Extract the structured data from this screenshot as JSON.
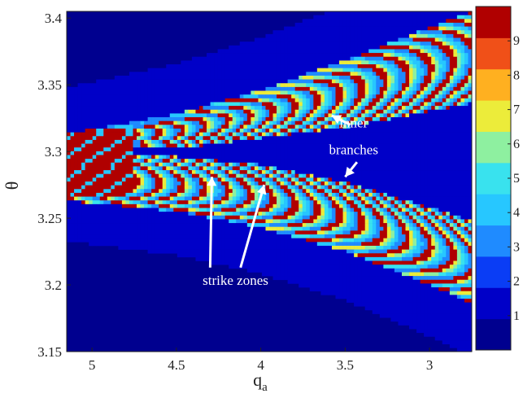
{
  "chart_data": {
    "type": "heatmap",
    "title": "",
    "xlabel": "q",
    "xlabel_sub": "a",
    "ylabel": "θ",
    "x_reversed": true,
    "xlim": [
      5.15,
      2.75
    ],
    "ylim": [
      3.15,
      3.405
    ],
    "x_ticks": [
      {
        "value": 5,
        "label": "5"
      },
      {
        "value": 4.5,
        "label": "4.5"
      },
      {
        "value": 4,
        "label": "4"
      },
      {
        "value": 3.5,
        "label": "3.5"
      },
      {
        "value": 3,
        "label": "3"
      }
    ],
    "y_ticks": [
      {
        "value": 3.4,
        "label": "3.4"
      },
      {
        "value": 3.35,
        "label": "3.35"
      },
      {
        "value": 3.3,
        "label": "3.3"
      },
      {
        "value": 3.25,
        "label": "3.25"
      },
      {
        "value": 3.2,
        "label": "3.2"
      },
      {
        "value": 3.15,
        "label": "3.15"
      }
    ],
    "colorbar": {
      "range": [
        0,
        10
      ],
      "ticks": [
        {
          "value": 1,
          "label": "1"
        },
        {
          "value": 2,
          "label": "2"
        },
        {
          "value": 3,
          "label": "3"
        },
        {
          "value": 4,
          "label": "4"
        },
        {
          "value": 5,
          "label": "5"
        },
        {
          "value": 6,
          "label": "6"
        },
        {
          "value": 7,
          "label": "7"
        },
        {
          "value": 8,
          "label": "8"
        },
        {
          "value": 9,
          "label": "9"
        }
      ],
      "colors": [
        "#00008f",
        "#0000c8",
        "#0a3df5",
        "#1f8bff",
        "#27c7ff",
        "#39e2ee",
        "#8ef0a0",
        "#ecec3a",
        "#ffb020",
        "#f05018",
        "#b00000"
      ]
    },
    "regions": {
      "background_level": 0.3,
      "envelope_level": 1.3,
      "upper_branch": {
        "top_edge": [
          [
            5.15,
            3.313
          ],
          [
            4.5,
            3.328
          ],
          [
            4.0,
            3.346
          ],
          [
            3.5,
            3.368
          ],
          [
            3.0,
            3.393
          ],
          [
            2.75,
            3.405
          ]
        ],
        "bottom_edge": [
          [
            5.15,
            3.306
          ],
          [
            4.5,
            3.302
          ],
          [
            4.0,
            3.31
          ],
          [
            3.5,
            3.318
          ],
          [
            3.0,
            3.33
          ],
          [
            2.75,
            3.336
          ]
        ]
      },
      "lower_branch": {
        "top_edge": [
          [
            5.15,
            3.3
          ],
          [
            4.5,
            3.296
          ],
          [
            4.0,
            3.29
          ],
          [
            3.5,
            3.277
          ],
          [
            3.0,
            3.258
          ],
          [
            2.75,
            3.248
          ]
        ],
        "bottom_edge": [
          [
            5.15,
            3.263
          ],
          [
            4.5,
            3.255
          ],
          [
            4.0,
            3.243
          ],
          [
            3.5,
            3.225
          ],
          [
            3.0,
            3.2
          ],
          [
            2.75,
            3.186
          ]
        ]
      },
      "dense_red_zone": {
        "x_range": [
          4.75,
          5.15
        ],
        "y_range": [
          3.265,
          3.318
        ]
      }
    },
    "annotations": [
      {
        "text": "inner",
        "x": 3.45,
        "y": 3.318
      },
      {
        "text": "branches",
        "x": 3.45,
        "y": 3.298
      },
      {
        "text": "strike zones",
        "x": 4.15,
        "y": 3.2
      }
    ],
    "arrows": [
      {
        "from": [
          3.47,
          3.32
        ],
        "to": [
          3.58,
          3.327
        ]
      },
      {
        "from": [
          3.43,
          3.292
        ],
        "to": [
          3.5,
          3.281
        ]
      },
      {
        "from": [
          4.3,
          3.213
        ],
        "to": [
          4.29,
          3.281
        ]
      },
      {
        "from": [
          4.12,
          3.213
        ],
        "to": [
          3.98,
          3.275
        ]
      }
    ]
  }
}
